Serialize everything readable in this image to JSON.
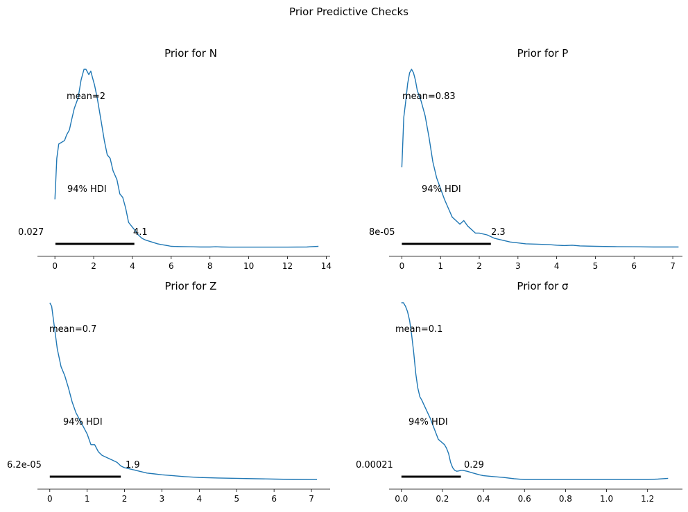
{
  "figure": {
    "title": "Prior Predictive Checks"
  },
  "chart_data": [
    {
      "type": "line",
      "title": "Prior for N",
      "xlim": [
        -0.9,
        14.2
      ],
      "xticks": [
        "0",
        "2",
        "4",
        "6",
        "8",
        "10",
        "12",
        "14"
      ],
      "mean_label": "mean=2",
      "hdi_label": "94% HDI",
      "hdi": [
        0.027,
        4.1
      ],
      "hdi_low_label": "0.027",
      "hdi_high_label": "4.1",
      "curve": {
        "x": [
          0,
          0.1,
          0.2,
          0.35,
          0.5,
          0.6,
          0.75,
          0.85,
          1.0,
          1.2,
          1.35,
          1.5,
          1.6,
          1.7,
          1.75,
          1.85,
          1.95,
          2.05,
          2.2,
          2.4,
          2.55,
          2.7,
          2.85,
          3.0,
          3.2,
          3.35,
          3.5,
          3.65,
          3.8,
          3.95,
          4.1,
          4.3,
          4.5,
          4.7,
          5.0,
          5.3,
          5.5,
          5.8,
          6.0,
          6.5,
          7.0,
          7.5,
          8.0,
          8.3,
          8.6,
          9.0,
          10.0,
          11.0,
          12.0,
          13.0,
          13.6
        ],
        "y": [
          0.27,
          0.5,
          0.58,
          0.59,
          0.6,
          0.63,
          0.66,
          0.71,
          0.78,
          0.84,
          0.94,
          1.0,
          1.0,
          0.98,
          0.97,
          0.99,
          0.95,
          0.91,
          0.83,
          0.7,
          0.6,
          0.52,
          0.5,
          0.43,
          0.38,
          0.3,
          0.28,
          0.22,
          0.14,
          0.12,
          0.1,
          0.07,
          0.05,
          0.04,
          0.03,
          0.02,
          0.015,
          0.01,
          0.006,
          0.004,
          0.003,
          0.002,
          0.002,
          0.003,
          0.002,
          0.001,
          0.001,
          0.001,
          0.001,
          0.002,
          0.006
        ]
      }
    },
    {
      "type": "line",
      "title": "Prior for P",
      "xlim": [
        -0.33,
        7.25
      ],
      "xticks": [
        "0",
        "1",
        "2",
        "3",
        "4",
        "5",
        "6",
        "7"
      ],
      "mean_label": "mean=0.83",
      "hdi_label": "94% HDI",
      "hdi": [
        8e-05,
        2.3
      ],
      "hdi_low_label": "8e-05",
      "hdi_high_label": "2.3",
      "curve": {
        "x": [
          0,
          0.05,
          0.1,
          0.15,
          0.2,
          0.25,
          0.3,
          0.35,
          0.4,
          0.5,
          0.6,
          0.7,
          0.8,
          0.9,
          1.0,
          1.1,
          1.2,
          1.3,
          1.4,
          1.5,
          1.6,
          1.7,
          1.8,
          1.9,
          2.0,
          2.2,
          2.4,
          2.6,
          2.8,
          3.0,
          3.2,
          3.5,
          3.8,
          4.0,
          4.2,
          4.4,
          4.6,
          5.0,
          5.5,
          6.0,
          6.5,
          7.0,
          7.15
        ],
        "y": [
          0.45,
          0.73,
          0.82,
          0.92,
          0.98,
          1.0,
          0.98,
          0.94,
          0.88,
          0.82,
          0.74,
          0.62,
          0.48,
          0.39,
          0.33,
          0.27,
          0.22,
          0.17,
          0.15,
          0.13,
          0.15,
          0.12,
          0.1,
          0.08,
          0.08,
          0.07,
          0.05,
          0.04,
          0.03,
          0.025,
          0.02,
          0.018,
          0.015,
          0.012,
          0.01,
          0.012,
          0.008,
          0.006,
          0.004,
          0.003,
          0.002,
          0.002,
          0.002
        ]
      }
    },
    {
      "type": "line",
      "title": "Prior for Z",
      "xlim": [
        -0.33,
        7.5
      ],
      "xticks": [
        "0",
        "1",
        "2",
        "3",
        "4",
        "5",
        "6",
        "7"
      ],
      "mean_label": "mean=0.7",
      "hdi_label": "94% HDI",
      "hdi": [
        6.2e-05,
        1.9
      ],
      "hdi_low_label": "6.2e-05",
      "hdi_high_label": "1.9",
      "curve": {
        "x": [
          0,
          0.05,
          0.1,
          0.15,
          0.2,
          0.3,
          0.4,
          0.5,
          0.6,
          0.7,
          0.8,
          0.9,
          1.0,
          1.1,
          1.2,
          1.3,
          1.4,
          1.5,
          1.6,
          1.7,
          1.8,
          1.9,
          2.0,
          2.2,
          2.4,
          2.6,
          2.8,
          3.0,
          3.3,
          3.6,
          4.0,
          4.5,
          5.0,
          5.5,
          6.0,
          6.5,
          7.0,
          7.15
        ],
        "y": [
          1.0,
          0.98,
          0.9,
          0.82,
          0.74,
          0.64,
          0.59,
          0.52,
          0.44,
          0.38,
          0.34,
          0.3,
          0.26,
          0.2,
          0.2,
          0.16,
          0.14,
          0.13,
          0.12,
          0.11,
          0.1,
          0.08,
          0.07,
          0.06,
          0.05,
          0.04,
          0.035,
          0.03,
          0.025,
          0.02,
          0.015,
          0.012,
          0.01,
          0.008,
          0.006,
          0.004,
          0.003,
          0.003
        ]
      }
    },
    {
      "type": "line",
      "title": "Prior for σ",
      "xlim": [
        -0.06,
        1.37
      ],
      "xticks": [
        "0.0",
        "0.2",
        "0.4",
        "0.6",
        "0.8",
        "1.0",
        "1.2"
      ],
      "mean_label": "mean=0.1",
      "hdi_label": "94% HDI",
      "hdi": [
        0.00021,
        0.29
      ],
      "hdi_low_label": "0.00021",
      "hdi_high_label": "0.29",
      "curve": {
        "x": [
          0,
          0.01,
          0.02,
          0.03,
          0.04,
          0.05,
          0.06,
          0.07,
          0.08,
          0.09,
          0.1,
          0.12,
          0.14,
          0.16,
          0.18,
          0.2,
          0.21,
          0.22,
          0.23,
          0.24,
          0.25,
          0.26,
          0.27,
          0.28,
          0.29,
          0.3,
          0.32,
          0.35,
          0.38,
          0.4,
          0.45,
          0.5,
          0.55,
          0.6,
          0.7,
          0.8,
          1.0,
          1.2,
          1.25,
          1.3
        ],
        "y": [
          1.0,
          1.0,
          0.98,
          0.95,
          0.9,
          0.82,
          0.72,
          0.6,
          0.52,
          0.47,
          0.45,
          0.4,
          0.35,
          0.29,
          0.23,
          0.21,
          0.2,
          0.18,
          0.15,
          0.1,
          0.07,
          0.055,
          0.05,
          0.052,
          0.055,
          0.055,
          0.05,
          0.04,
          0.03,
          0.025,
          0.02,
          0.015,
          0.008,
          0.003,
          0.003,
          0.003,
          0.003,
          0.003,
          0.006,
          0.01
        ]
      }
    }
  ]
}
